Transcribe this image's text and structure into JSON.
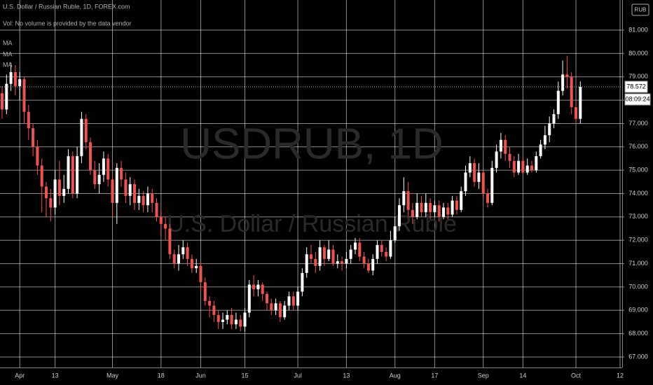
{
  "chart_data": {
    "type": "candlestick",
    "title": "U.S. Dollar / Russian Ruble, 1D, FOREX.com",
    "subtitle": "Vol: No volume is provided by the data vendor",
    "indicator_labels": [
      "MA",
      "MA",
      "MA"
    ],
    "watermark": "USDRUB, 1D",
    "watermark_subtitle": "U.S. Dollar / Russian Ruble",
    "currency": "RUB",
    "countdown": "08:09:24",
    "up_color": "#ffffff",
    "down_color": "#ef5350",
    "grid": true,
    "ylim": [
      66.55,
      82.29
    ],
    "yticks": [
      {
        "value": 67,
        "label": "67.000"
      },
      {
        "value": 68,
        "label": "68.000"
      },
      {
        "value": 69,
        "label": "69.000"
      },
      {
        "value": 70,
        "label": "70.000"
      },
      {
        "value": 71,
        "label": "71.000"
      },
      {
        "value": 72,
        "label": "72.000"
      },
      {
        "value": 73,
        "label": "73.000"
      },
      {
        "value": 74,
        "label": "74.000"
      },
      {
        "value": 75,
        "label": "75.000"
      },
      {
        "value": 76,
        "label": "76.000"
      },
      {
        "value": 77,
        "label": "77.000"
      },
      {
        "value": 78,
        "label": "78.000"
      },
      {
        "value": 79,
        "label": "79.000"
      },
      {
        "value": 80,
        "label": "80.000"
      },
      {
        "value": 81,
        "label": "81.000"
      }
    ],
    "categories": [
      null,
      null,
      null,
      null,
      "Apr",
      null,
      null,
      null,
      null,
      null,
      null,
      null,
      "13",
      null,
      null,
      null,
      null,
      null,
      null,
      null,
      null,
      null,
      null,
      null,
      null,
      "May",
      null,
      null,
      null,
      null,
      null,
      null,
      null,
      null,
      null,
      null,
      "18",
      null,
      null,
      null,
      null,
      null,
      null,
      null,
      null,
      "Jun",
      null,
      null,
      null,
      null,
      null,
      null,
      null,
      null,
      null,
      "15",
      null,
      null,
      null,
      null,
      null,
      null,
      null,
      null,
      null,
      null,
      null,
      "Jul",
      null,
      null,
      null,
      null,
      null,
      null,
      null,
      null,
      null,
      null,
      "13",
      null,
      null,
      null,
      null,
      null,
      null,
      null,
      null,
      null,
      null,
      "Aug",
      null,
      null,
      null,
      null,
      null,
      null,
      null,
      null,
      "17",
      null,
      null,
      null,
      null,
      null,
      null,
      null,
      null,
      null,
      null,
      "Sep",
      null,
      null,
      null,
      null,
      null,
      null,
      null,
      null,
      "14",
      null,
      null,
      null,
      null,
      null,
      null,
      null,
      null,
      null,
      null,
      null,
      "Oct",
      null,
      null,
      null,
      null,
      null,
      null,
      null,
      null,
      null,
      "12"
    ],
    "open": [
      78.3,
      77.6,
      78.7,
      79.2,
      78.6,
      78.9,
      77.5,
      76.8,
      76.0,
      75.2,
      74.3,
      73.8,
      73.4,
      74.6,
      73.9,
      74.2,
      75.6,
      74.0,
      75.6,
      77.2,
      76.2,
      75.0,
      74.4,
      74.8,
      75.5,
      74.6,
      73.6,
      75.1,
      74.6,
      73.9,
      74.4,
      73.6,
      73.9,
      73.5,
      74.0,
      73.6,
      73.0,
      72.7,
      72.5,
      71.4,
      71.0,
      71.4,
      71.7,
      71.2,
      70.8,
      70.9,
      70.2,
      69.4,
      69.2,
      68.8,
      68.5,
      68.6,
      68.8,
      68.4,
      68.6,
      68.3,
      68.9,
      70.1,
      69.9,
      70.1,
      69.7,
      69.3,
      69.0,
      69.3,
      68.7,
      69.2,
      69.6,
      69.2,
      69.8,
      70.6,
      71.4,
      71.2,
      70.9,
      71.7,
      71.2,
      71.6,
      71.0,
      71.1,
      71.0,
      71.2,
      71.6,
      71.9,
      71.3,
      71.0,
      70.7,
      71.2,
      71.8,
      71.5,
      71.3,
      72.0,
      72.6,
      73.5,
      74.1,
      73.3,
      73.0,
      73.6,
      73.2,
      73.6,
      73.2,
      73.5,
      73.0,
      73.4,
      73.1,
      73.7,
      73.3,
      74.1,
      74.9,
      75.3,
      74.5,
      74.9,
      74.0,
      73.6,
      75.1,
      75.8,
      76.3,
      75.7,
      75.4,
      74.9,
      75.4,
      74.9,
      75.2,
      75.0,
      75.6,
      76.1,
      76.5,
      77.0,
      77.4,
      78.4,
      79.1,
      79.0,
      77.7,
      77.2,
      null,
      null,
      null,
      null,
      null,
      null,
      null,
      null,
      null
    ],
    "high": [
      78.6,
      79.1,
      79.6,
      79.5,
      79.2,
      79.0,
      77.8,
      77.0,
      76.3,
      75.5,
      74.5,
      74.2,
      75.0,
      75.4,
      74.8,
      75.9,
      75.8,
      76.0,
      77.5,
      77.4,
      76.4,
      75.4,
      75.3,
      75.8,
      75.7,
      74.8,
      75.3,
      75.4,
      74.9,
      74.7,
      74.6,
      74.2,
      74.1,
      74.3,
      74.2,
      73.8,
      73.3,
      73.0,
      72.7,
      71.6,
      71.8,
      72.0,
      71.9,
      71.4,
      71.2,
      71.1,
      70.4,
      69.6,
      69.4,
      69.0,
      68.9,
      69.0,
      69.1,
      68.9,
      68.8,
      69.1,
      70.3,
      70.5,
      70.3,
      70.2,
      69.8,
      69.5,
      69.5,
      69.4,
      69.4,
      69.8,
      69.8,
      70.0,
      70.8,
      71.7,
      71.8,
      71.5,
      72.0,
      71.8,
      72.0,
      71.8,
      71.4,
      71.3,
      71.5,
      71.8,
      72.1,
      72.1,
      71.5,
      71.2,
      71.4,
      72.0,
      72.0,
      71.7,
      72.4,
      73.0,
      73.8,
      74.7,
      74.5,
      73.6,
      74.0,
      73.9,
      74.0,
      73.8,
      73.7,
      73.7,
      73.6,
      73.6,
      73.9,
      73.9,
      74.3,
      75.2,
      75.6,
      75.5,
      75.3,
      75.0,
      74.2,
      75.4,
      76.1,
      76.6,
      76.5,
      76.0,
      75.6,
      75.7,
      75.6,
      75.5,
      75.4,
      75.8,
      76.3,
      76.9,
      77.3,
      77.6,
      78.8,
      79.7,
      79.9,
      79.2,
      78.0,
      78.8,
      null,
      null,
      null,
      null,
      null,
      null,
      null,
      null,
      null
    ],
    "low": [
      77.2,
      77.4,
      78.4,
      78.2,
      78.0,
      77.0,
      76.3,
      75.6,
      74.8,
      73.2,
      73.0,
      72.8,
      73.1,
      73.5,
      73.6,
      74.0,
      73.8,
      73.8,
      75.3,
      75.9,
      74.8,
      74.2,
      74.0,
      74.5,
      74.3,
      73.0,
      72.7,
      74.3,
      73.6,
      73.5,
      73.3,
      73.3,
      73.2,
      73.2,
      73.2,
      72.8,
      72.2,
      72.0,
      71.2,
      70.8,
      70.7,
      71.2,
      70.9,
      70.6,
      70.6,
      69.8,
      69.2,
      68.7,
      68.5,
      68.2,
      68.2,
      68.4,
      68.2,
      68.2,
      68.1,
      68.1,
      68.7,
      69.6,
      69.6,
      69.4,
      69.0,
      68.8,
      68.8,
      68.5,
      68.6,
      69.0,
      69.0,
      69.0,
      69.6,
      70.4,
      71.0,
      70.6,
      70.7,
      70.9,
      71.1,
      70.9,
      70.8,
      70.7,
      70.8,
      71.0,
      71.4,
      71.1,
      70.8,
      70.6,
      70.5,
      71.0,
      71.3,
      71.1,
      71.2,
      71.9,
      72.4,
      73.2,
      73.0,
      72.7,
      72.9,
      73.0,
      73.0,
      72.9,
      73.0,
      72.8,
      72.9,
      72.9,
      73.0,
      73.1,
      73.2,
      73.9,
      74.7,
      74.3,
      74.2,
      73.8,
      73.4,
      73.5,
      74.9,
      75.5,
      75.4,
      75.1,
      74.7,
      74.8,
      74.8,
      74.8,
      74.9,
      74.9,
      75.5,
      75.9,
      76.2,
      76.8,
      77.2,
      78.2,
      78.5,
      77.4,
      77.0,
      77.0,
      null,
      null,
      null,
      null,
      null,
      null,
      null,
      null,
      null
    ],
    "close": [
      77.6,
      78.7,
      79.2,
      78.6,
      78.9,
      77.5,
      76.8,
      76.0,
      75.2,
      74.3,
      73.8,
      73.4,
      74.6,
      73.9,
      74.2,
      75.6,
      74.0,
      75.6,
      77.2,
      76.2,
      75.0,
      74.4,
      74.8,
      75.5,
      74.6,
      73.6,
      75.1,
      74.6,
      73.9,
      74.4,
      73.6,
      73.9,
      73.5,
      74.0,
      73.6,
      73.0,
      72.7,
      72.5,
      71.4,
      71.0,
      71.4,
      71.7,
      71.2,
      70.8,
      70.9,
      70.2,
      69.4,
      69.2,
      68.8,
      68.5,
      68.6,
      68.8,
      68.4,
      68.6,
      68.3,
      68.9,
      70.1,
      69.9,
      70.1,
      69.7,
      69.3,
      69.0,
      69.3,
      68.7,
      69.2,
      69.6,
      69.2,
      69.8,
      70.6,
      71.4,
      71.2,
      70.9,
      71.7,
      71.2,
      71.6,
      71.0,
      71.1,
      71.0,
      71.2,
      71.6,
      71.9,
      71.3,
      71.0,
      70.7,
      71.2,
      71.8,
      71.5,
      71.3,
      72.0,
      72.6,
      73.5,
      74.1,
      73.3,
      73.0,
      73.6,
      73.2,
      73.6,
      73.2,
      73.5,
      73.0,
      73.4,
      73.1,
      73.7,
      73.3,
      74.1,
      74.9,
      75.3,
      74.5,
      74.9,
      74.0,
      73.6,
      75.1,
      75.8,
      76.3,
      75.7,
      75.4,
      74.9,
      75.4,
      74.9,
      75.2,
      75.0,
      75.6,
      76.1,
      76.5,
      77.0,
      77.4,
      78.4,
      79.1,
      79.0,
      77.7,
      77.2,
      78.572,
      null,
      null,
      null,
      null,
      null,
      null,
      null,
      null,
      null
    ]
  }
}
